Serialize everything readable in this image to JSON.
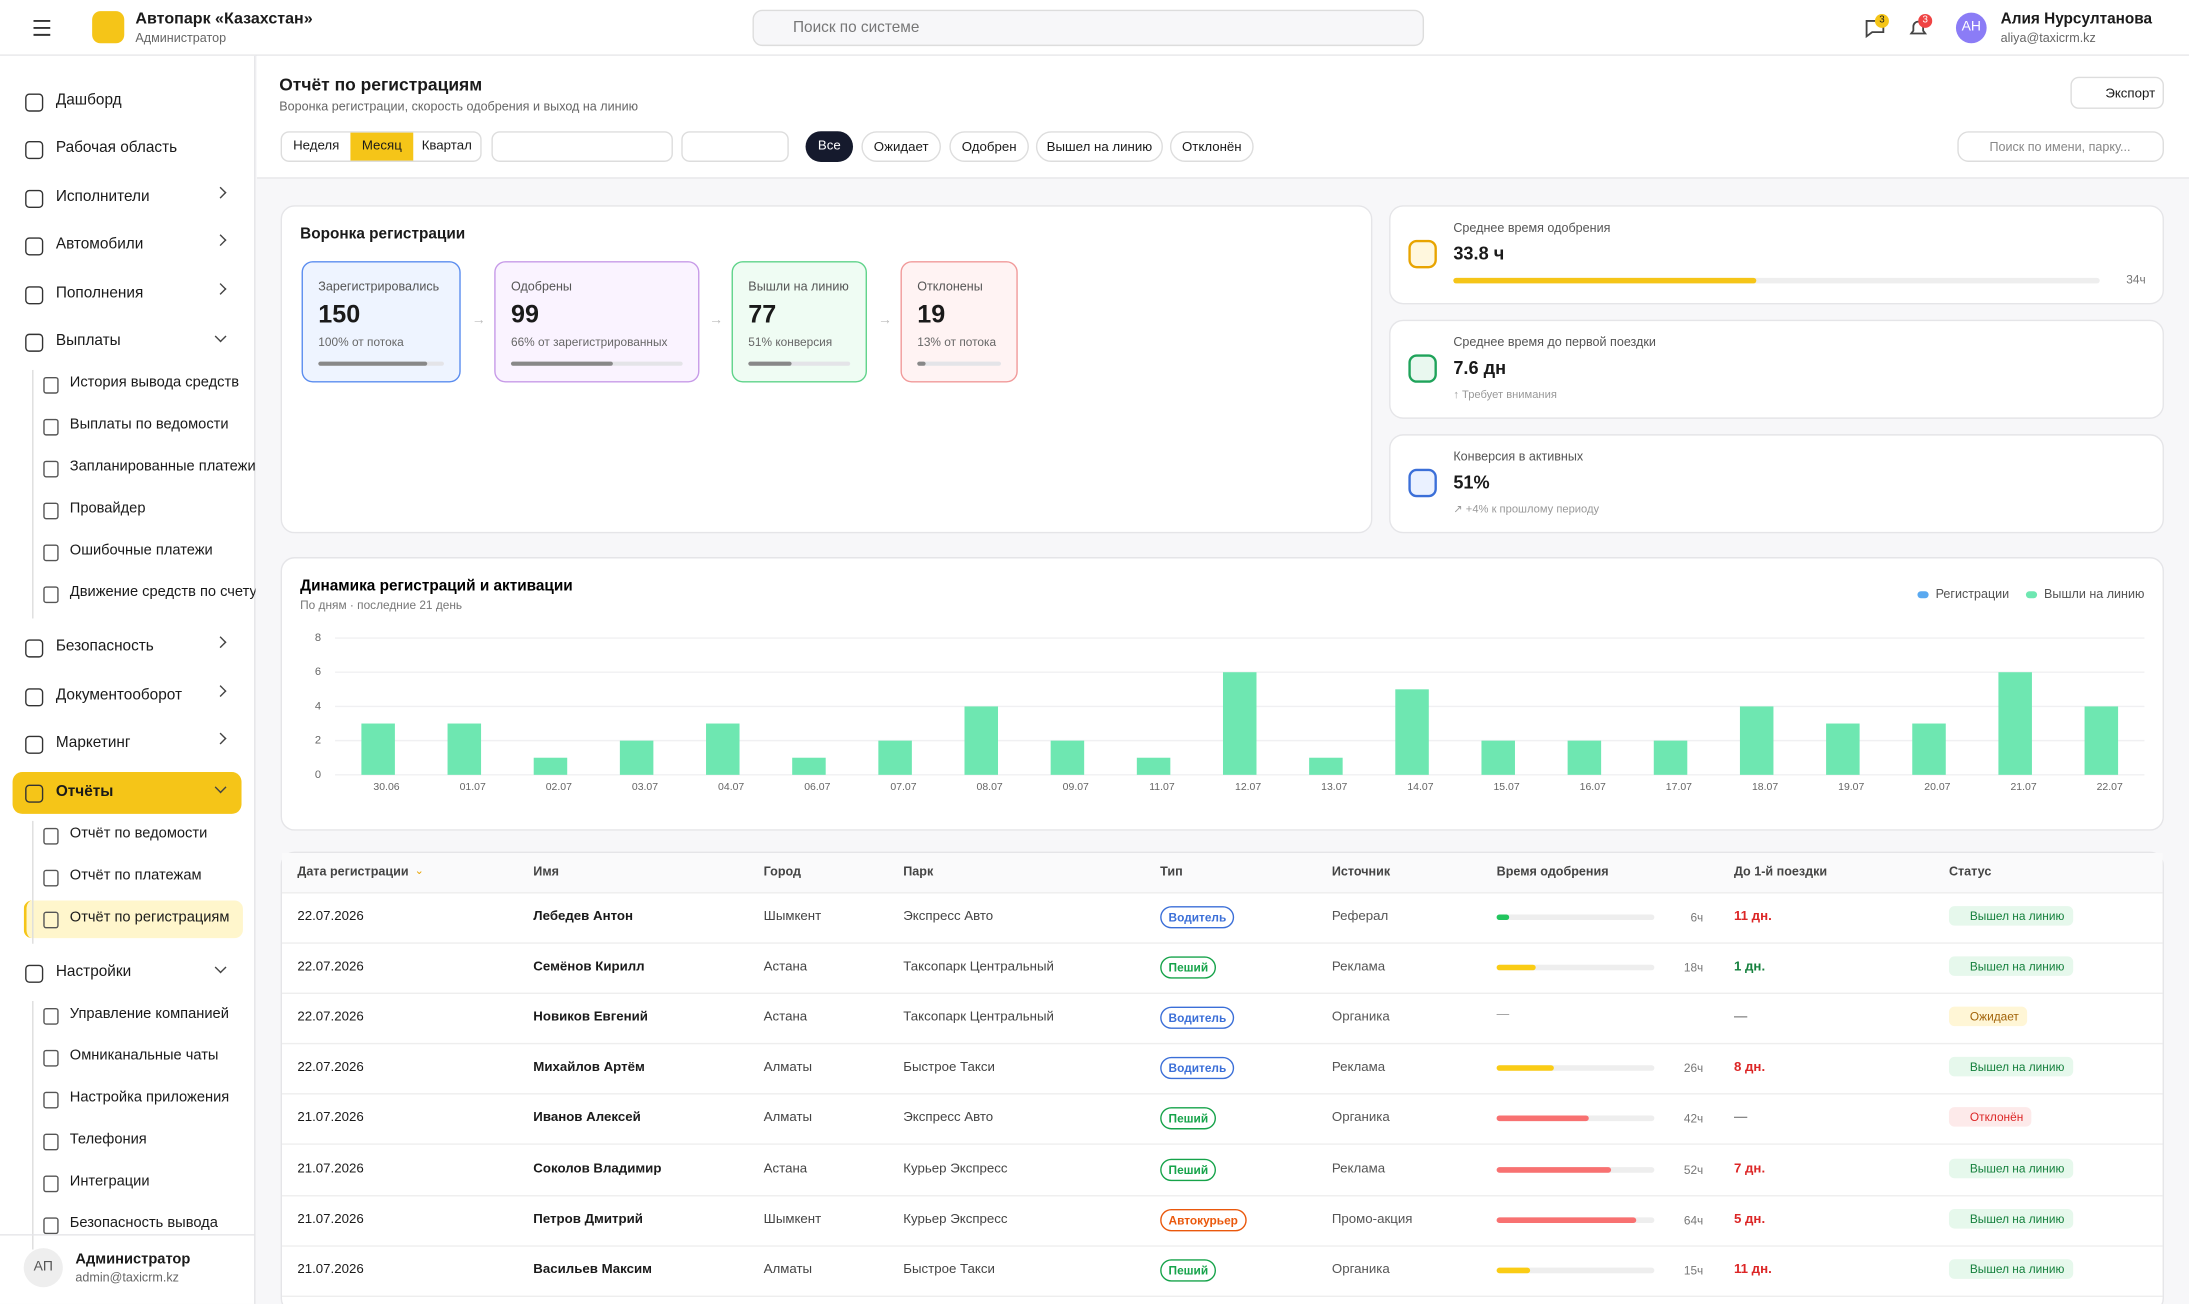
{
  "header": {
    "org": "Автопарк «Казахстан»",
    "role": "Администратор",
    "search": "Поиск по системе",
    "chat_badge": "3",
    "bell_badge": "3",
    "avatar": "АН",
    "user": "Алия Нурсултанова",
    "email": "aliya@taxicrm.kz"
  },
  "sidebar": {
    "items": [
      {
        "label": "Дашборд"
      },
      {
        "label": "Рабочая область"
      },
      {
        "label": "Исполнители",
        "arrow": "right"
      },
      {
        "label": "Автомобили",
        "arrow": "right"
      },
      {
        "label": "Пополнения",
        "arrow": "right"
      },
      {
        "label": "Выплаты",
        "arrow": "down",
        "children": [
          "История вывода средств",
          "Выплаты по ведомости",
          "Запланированные платежи",
          "Провайдер",
          "Ошибочные платежи",
          "Движение средств по счету"
        ]
      },
      {
        "label": "Безопасность",
        "arrow": "right"
      },
      {
        "label": "Документооборот",
        "arrow": "right"
      },
      {
        "label": "Маркетинг",
        "arrow": "right"
      },
      {
        "label": "Отчёты",
        "arrow": "down",
        "active": true,
        "children": [
          "Отчёт по ведомости",
          "Отчёт по платежам",
          "Отчёт по регистрациям"
        ],
        "active_child": 2
      },
      {
        "label": "Настройки",
        "arrow": "down",
        "children": [
          "Управление компанией",
          "Омниканальные чаты",
          "Настройка приложения",
          "Телефония",
          "Интеграции",
          "Безопасность вывода"
        ]
      }
    ],
    "footer": {
      "avatar": "АП",
      "name": "Администратор",
      "email": "admin@taxicrm.kz"
    }
  },
  "page": {
    "title": "Отчёт по регистрациям",
    "subtitle": "Воронка регистрации, скорость одобрения и выход на линию",
    "export": "Экспорт",
    "periods": [
      "Неделя",
      "Месяц",
      "Квартал"
    ],
    "active_period": 1,
    "statuses": [
      "Все",
      "Ожидает",
      "Одобрен",
      "Вышел на линию",
      "Отклонён"
    ],
    "active_status": 0,
    "search": "Поиск по имени, парку..."
  },
  "funnel": {
    "title": "Воронка регистрации",
    "steps": [
      {
        "label": "Зарегистрировались",
        "value": 150,
        "sub": "100% от потока",
        "pct": 100,
        "color": "#5b8def",
        "bg": "#eef4ff"
      },
      {
        "label": "Одобрены",
        "value": 99,
        "sub": "66% от зарегистрированных",
        "pct": 66,
        "color": "#c79be8",
        "bg": "#faf3ff"
      },
      {
        "label": "Вышли на линию",
        "value": 77,
        "sub": "51% конверсия",
        "pct": 51,
        "color": "#5fd38a",
        "bg": "#effcf3"
      },
      {
        "label": "Отклонены",
        "value": 19,
        "sub": "13% от потока",
        "pct": 13,
        "color": "#f19a9a",
        "bg": "#fff3f3"
      }
    ]
  },
  "stats": [
    {
      "label": "Среднее время одобрения",
      "value": "33.8 ч",
      "progress": 33.8,
      "progress_end": "34ч",
      "icon_color": "#e8a400",
      "icon_bg": "#fff7dd"
    },
    {
      "label": "Среднее время до первой поездки",
      "value": "7.6 дн",
      "note": "↑ Требует внимания",
      "icon_color": "#1fa35a",
      "icon_bg": "#e9f8ef"
    },
    {
      "label": "Конверсия в активных",
      "value": "51%",
      "note": "↗ +4% к прошлому периоду",
      "icon_color": "#3b6fd8",
      "icon_bg": "#eaf1ff"
    }
  ],
  "approval_scale": [
    0,
    72
  ],
  "chart_data": {
    "type": "bar",
    "title": "Динамика регистраций и активации",
    "subtitle": "По дням · последние 21 день",
    "categories": [
      "30.06",
      "01.07",
      "02.07",
      "03.07",
      "04.07",
      "06.07",
      "07.07",
      "08.07",
      "09.07",
      "11.07",
      "12.07",
      "13.07",
      "14.07",
      "15.07",
      "16.07",
      "17.07",
      "18.07",
      "19.07",
      "20.07",
      "21.07",
      "22.07"
    ],
    "series": [
      {
        "name": "Регистрации",
        "color": "#5aa9f0",
        "values": [
          null,
          null,
          null,
          null,
          null,
          null,
          null,
          null,
          null,
          null,
          null,
          null,
          null,
          null,
          null,
          null,
          null,
          null,
          null,
          null,
          null
        ]
      },
      {
        "name": "Вышли на линию",
        "color": "#6ee7b1",
        "values": [
          3,
          3,
          1,
          2,
          3,
          1,
          2,
          4,
          2,
          1,
          6,
          1,
          5,
          2,
          2,
          2,
          4,
          3,
          3,
          6,
          4
        ]
      }
    ],
    "ylim": [
      0,
      8
    ],
    "yticks": [
      0,
      2,
      4,
      6,
      8
    ],
    "grid": true,
    "legend": "top-right"
  },
  "table": {
    "columns": [
      "Дата регистрации",
      "Имя",
      "Город",
      "Парк",
      "Тип",
      "Источник",
      "Время одобрения",
      "До 1-й поездки",
      "Статус"
    ],
    "rows": [
      {
        "date": "22.07.2026",
        "name": "Лебедев Антон",
        "city": "Шымкент",
        "park": "Экспресс Авто",
        "type": "Водитель",
        "type_color": "#3b6fd8",
        "source": "Реферал",
        "approval": {
          "value": 6,
          "label": "6ч"
        },
        "bar_color": "#22c55e",
        "ride": "11 дн.",
        "ride_color": "#dc2626",
        "status": "Вышел на линию",
        "status_color": "#15803d",
        "status_bg": "#e6f8ec"
      },
      {
        "date": "22.07.2026",
        "name": "Семёнов Кирилл",
        "city": "Астана",
        "park": "Таксопарк Центральный",
        "type": "Пеший",
        "type_color": "#16a34a",
        "source": "Реклама",
        "approval": {
          "value": 18,
          "label": "18ч"
        },
        "bar_color": "#facc15",
        "ride": "1 дн.",
        "ride_color": "#15803d",
        "status": "Вышел на линию",
        "status_color": "#15803d",
        "status_bg": "#e6f8ec"
      },
      {
        "date": "22.07.2026",
        "name": "Новиков Евгений",
        "city": "Астана",
        "park": "Таксопарк Центральный",
        "type": "Водитель",
        "type_color": "#3b6fd8",
        "source": "Органика",
        "approval": {
          "value": null,
          "label": "—"
        },
        "bar_color": "#facc15",
        "ride": "—",
        "ride_color": "#888",
        "status": "Ожидает",
        "status_color": "#a16207",
        "status_bg": "#fff6d6"
      },
      {
        "date": "22.07.2026",
        "name": "Михайлов Артём",
        "city": "Алматы",
        "park": "Быстрое Такси",
        "type": "Водитель",
        "type_color": "#3b6fd8",
        "source": "Реклама",
        "approval": {
          "value": 26,
          "label": "26ч"
        },
        "bar_color": "#facc15",
        "ride": "8 дн.",
        "ride_color": "#dc2626",
        "status": "Вышел на линию",
        "status_color": "#15803d",
        "status_bg": "#e6f8ec"
      },
      {
        "date": "21.07.2026",
        "name": "Иванов Алексей",
        "city": "Алматы",
        "park": "Экспресс Авто",
        "type": "Пеший",
        "type_color": "#16a34a",
        "source": "Органика",
        "approval": {
          "value": 42,
          "label": "42ч"
        },
        "bar_color": "#f87171",
        "ride": "—",
        "ride_color": "#888",
        "status": "Отклонён",
        "status_color": "#dc2626",
        "status_bg": "#fdeaea"
      },
      {
        "date": "21.07.2026",
        "name": "Соколов Владимир",
        "city": "Астана",
        "park": "Курьер Экспресс",
        "type": "Пеший",
        "type_color": "#16a34a",
        "source": "Реклама",
        "approval": {
          "value": 52,
          "label": "52ч"
        },
        "bar_color": "#f87171",
        "ride": "7 дн.",
        "ride_color": "#dc2626",
        "status": "Вышел на линию",
        "status_color": "#15803d",
        "status_bg": "#e6f8ec"
      },
      {
        "date": "21.07.2026",
        "name": "Петров Дмитрий",
        "city": "Шымкент",
        "park": "Курьер Экспресс",
        "type": "Автокурьер",
        "type_color": "#ea580c",
        "source": "Промо-акция",
        "approval": {
          "value": 64,
          "label": "64ч"
        },
        "bar_color": "#f87171",
        "ride": "5 дн.",
        "ride_color": "#dc2626",
        "status": "Вышел на линию",
        "status_color": "#15803d",
        "status_bg": "#e6f8ec"
      },
      {
        "date": "21.07.2026",
        "name": "Васильев Максим",
        "city": "Алматы",
        "park": "Быстрое Такси",
        "type": "Пеший",
        "type_color": "#16a34a",
        "source": "Органика",
        "approval": {
          "value": 15,
          "label": "15ч"
        },
        "bar_color": "#facc15",
        "ride": "11 дн.",
        "ride_color": "#dc2626",
        "status": "Вышел на линию",
        "status_color": "#15803d",
        "status_bg": "#e6f8ec"
      }
    ]
  }
}
